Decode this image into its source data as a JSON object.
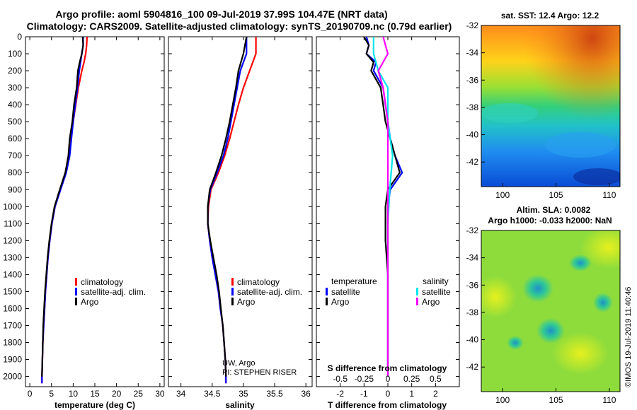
{
  "titles": {
    "line1": "Argo profile: aoml 5904816_100 09-Jul-2019 37.99S 104.47E (NRT data)",
    "line2": "Climatology: CARS2009. Satellite-adjusted climatology: synTS_20190709.nc (0.79d earlier)",
    "sst_title": "sat. SST: 12.4 Argo: 12.2",
    "sla_title1": "Altim. SLA: 0.0082",
    "sla_title2": "Argo h1000: -0.033 h2000: NaN",
    "credit": "UW, Argo",
    "pi": "PI: STEPHEN RISER",
    "watermark": "©IMOS 19-Jul-2019 11:40:46"
  },
  "colors": {
    "climatology": "#ff0000",
    "satellite": "#0000ff",
    "argo": "#000000",
    "salinity_satellite": "#00e5ee",
    "salinity_argo": "#ff00ff"
  },
  "chart_data": [
    {
      "type": "line",
      "panel": "temperature",
      "xlabel": "temperature (deg C)",
      "ylabel": "",
      "xlim": [
        -1,
        31
      ],
      "ylim": [
        2060,
        0
      ],
      "xticks": [
        0,
        5,
        10,
        15,
        20,
        25,
        30
      ],
      "yticks": [
        0,
        100,
        200,
        300,
        400,
        500,
        600,
        700,
        800,
        900,
        1000,
        1100,
        1200,
        1300,
        1400,
        1500,
        1600,
        1700,
        1800,
        1900,
        2000
      ],
      "legend": [
        "climatology",
        "satellite-adj. clim.",
        "Argo"
      ],
      "series": [
        {
          "name": "climatology",
          "color": "#ff0000",
          "points": [
            [
              13.2,
              0
            ],
            [
              13.1,
              50
            ],
            [
              12.9,
              100
            ],
            [
              12.5,
              150
            ],
            [
              12,
              200
            ],
            [
              11.2,
              300
            ],
            [
              10.6,
              400
            ],
            [
              10,
              500
            ],
            [
              9.5,
              600
            ],
            [
              9,
              700
            ],
            [
              8.2,
              800
            ],
            [
              7,
              900
            ],
            [
              5.8,
              1000
            ],
            [
              5.1,
              1100
            ],
            [
              4.6,
              1200
            ],
            [
              4.2,
              1300
            ],
            [
              3.9,
              1400
            ],
            [
              3.6,
              1500
            ],
            [
              3.4,
              1600
            ],
            [
              3.2,
              1700
            ],
            [
              3.0,
              1800
            ],
            [
              2.9,
              1900
            ],
            [
              2.8,
              2000
            ],
            [
              2.8,
              2040
            ]
          ]
        },
        {
          "name": "satellite-adj. clim.",
          "color": "#0000ff",
          "points": [
            [
              12.3,
              0
            ],
            [
              12.3,
              50
            ],
            [
              12,
              100
            ],
            [
              11.7,
              150
            ],
            [
              11.4,
              200
            ],
            [
              11,
              300
            ],
            [
              10.5,
              400
            ],
            [
              10,
              500
            ],
            [
              9.6,
              600
            ],
            [
              9.2,
              700
            ],
            [
              8.4,
              800
            ],
            [
              7.1,
              900
            ],
            [
              5.8,
              1000
            ],
            [
              5.1,
              1100
            ],
            [
              4.6,
              1200
            ],
            [
              4.2,
              1300
            ],
            [
              3.9,
              1400
            ],
            [
              3.6,
              1500
            ],
            [
              3.4,
              1600
            ],
            [
              3.2,
              1700
            ],
            [
              3.0,
              1800
            ],
            [
              2.9,
              1900
            ],
            [
              2.8,
              2000
            ],
            [
              2.8,
              2040
            ]
          ]
        },
        {
          "name": "Argo",
          "color": "#000000",
          "points": [
            [
              12.2,
              0
            ],
            [
              12.3,
              50
            ],
            [
              12.0,
              100
            ],
            [
              11.5,
              150
            ],
            [
              11.1,
              200
            ],
            [
              10.8,
              300
            ],
            [
              10.2,
              400
            ],
            [
              9.8,
              500
            ],
            [
              9.2,
              600
            ],
            [
              8.9,
              700
            ],
            [
              8.2,
              800
            ],
            [
              6.9,
              900
            ],
            [
              5.7,
              1000
            ],
            [
              5.0,
              1100
            ],
            [
              4.5,
              1200
            ],
            [
              4.1,
              1300
            ],
            [
              3.8,
              1400
            ],
            [
              3.5,
              1500
            ],
            [
              3.3,
              1600
            ],
            [
              3.1,
              1700
            ],
            [
              3.0,
              1800
            ],
            [
              2.9,
              1900
            ],
            [
              2.8,
              2000
            ]
          ]
        }
      ]
    },
    {
      "type": "line",
      "panel": "salinity",
      "xlabel": "salinity",
      "xlim": [
        33.8,
        36.1
      ],
      "ylim": [
        2060,
        0
      ],
      "xticks": [
        34,
        34.5,
        35,
        35.5,
        36
      ],
      "xticklabels": [
        "34",
        "34.5",
        "35",
        "35.5",
        "36"
      ],
      "legend": [
        "climatology",
        "satellite-adj. clim.",
        "Argo"
      ],
      "series": [
        {
          "name": "climatology",
          "color": "#ff0000",
          "points": [
            [
              35.2,
              0
            ],
            [
              35.2,
              100
            ],
            [
              35.1,
              200
            ],
            [
              35.0,
              300
            ],
            [
              34.92,
              400
            ],
            [
              34.85,
              500
            ],
            [
              34.78,
              600
            ],
            [
              34.7,
              700
            ],
            [
              34.6,
              800
            ],
            [
              34.48,
              900
            ],
            [
              34.44,
              1000
            ],
            [
              34.43,
              1100
            ],
            [
              34.46,
              1200
            ],
            [
              34.5,
              1300
            ],
            [
              34.55,
              1400
            ],
            [
              34.6,
              1500
            ],
            [
              34.63,
              1600
            ],
            [
              34.67,
              1700
            ],
            [
              34.69,
              1800
            ],
            [
              34.71,
              1900
            ],
            [
              34.72,
              2000
            ],
            [
              34.72,
              2040
            ]
          ]
        },
        {
          "name": "satellite-adj. clim.",
          "color": "#0000ff",
          "points": [
            [
              35.05,
              0
            ],
            [
              35.05,
              100
            ],
            [
              34.95,
              200
            ],
            [
              34.9,
              300
            ],
            [
              34.85,
              400
            ],
            [
              34.8,
              500
            ],
            [
              34.75,
              600
            ],
            [
              34.68,
              700
            ],
            [
              34.58,
              800
            ],
            [
              34.47,
              900
            ],
            [
              34.43,
              1000
            ],
            [
              34.43,
              1100
            ],
            [
              34.46,
              1200
            ],
            [
              34.5,
              1300
            ],
            [
              34.55,
              1400
            ],
            [
              34.6,
              1500
            ],
            [
              34.63,
              1600
            ],
            [
              34.67,
              1700
            ],
            [
              34.69,
              1800
            ],
            [
              34.71,
              1900
            ],
            [
              34.72,
              2000
            ],
            [
              34.72,
              2040
            ]
          ]
        },
        {
          "name": "Argo",
          "color": "#000000",
          "points": [
            [
              35.05,
              0
            ],
            [
              35.0,
              100
            ],
            [
              34.92,
              200
            ],
            [
              34.88,
              300
            ],
            [
              34.83,
              400
            ],
            [
              34.78,
              500
            ],
            [
              34.72,
              600
            ],
            [
              34.65,
              700
            ],
            [
              34.56,
              800
            ],
            [
              34.46,
              900
            ],
            [
              34.43,
              1000
            ],
            [
              34.43,
              1100
            ],
            [
              34.47,
              1200
            ],
            [
              34.52,
              1300
            ],
            [
              34.57,
              1400
            ],
            [
              34.61,
              1500
            ],
            [
              34.64,
              1600
            ],
            [
              34.67,
              1700
            ],
            [
              34.69,
              1800
            ],
            [
              34.71,
              1900
            ],
            [
              34.72,
              2000
            ]
          ]
        }
      ]
    },
    {
      "type": "line",
      "panel": "difference",
      "xlabel": "T difference from climatology",
      "xlabel_top": "S difference from climatology",
      "xlim": [
        -3,
        3
      ],
      "ylim": [
        2060,
        0
      ],
      "xticks": [
        -2,
        -1,
        0,
        1,
        2
      ],
      "s_ticklabels": [
        "-0.5",
        "-0.25",
        "0",
        "0.25",
        "0.5"
      ],
      "legend_left_title": "temperature",
      "legend_right_title": "salinity",
      "legend": [
        "satellite",
        "Argo",
        "satellite",
        "Argo"
      ],
      "series": [
        {
          "name": "temperature satellite",
          "color": "#0000ff",
          "points": [
            [
              -0.9,
              0
            ],
            [
              -0.8,
              50
            ],
            [
              -0.9,
              100
            ],
            [
              -0.5,
              150
            ],
            [
              -0.6,
              200
            ],
            [
              -0.2,
              300
            ],
            [
              -0.1,
              400
            ],
            [
              0.0,
              500
            ],
            [
              0.1,
              600
            ],
            [
              0.3,
              700
            ],
            [
              0.6,
              800
            ],
            [
              0.1,
              900
            ],
            [
              0.0,
              1000
            ],
            [
              0.0,
              1200
            ],
            [
              0.0,
              1400
            ],
            [
              0.0,
              1600
            ],
            [
              0.0,
              1800
            ],
            [
              0.0,
              2000
            ]
          ]
        },
        {
          "name": "temperature Argo",
          "color": "#000000",
          "points": [
            [
              -1.0,
              0
            ],
            [
              -0.8,
              50
            ],
            [
              -0.9,
              100
            ],
            [
              -0.6,
              150
            ],
            [
              -0.7,
              200
            ],
            [
              -0.3,
              300
            ],
            [
              -0.2,
              400
            ],
            [
              -0.1,
              500
            ],
            [
              0.1,
              600
            ],
            [
              0.3,
              700
            ],
            [
              0.5,
              800
            ],
            [
              0.0,
              900
            ],
            [
              -0.1,
              1000
            ],
            [
              -0.1,
              1200
            ],
            [
              0.0,
              1400
            ],
            [
              0.0,
              1600
            ],
            [
              0.0,
              1800
            ],
            [
              0.0,
              2000
            ]
          ]
        },
        {
          "name": "salinity satellite",
          "color": "#00e5ee",
          "points": [
            [
              -0.15,
              0
            ],
            [
              -0.15,
              100
            ],
            [
              -0.1,
              200
            ],
            [
              0.0,
              300
            ],
            [
              0.0,
              500
            ],
            [
              0.05,
              700
            ],
            [
              0.02,
              900
            ],
            [
              0.0,
              1100
            ],
            [
              0.0,
              1400
            ],
            [
              0.0,
              1700
            ],
            [
              0.0,
              2000
            ]
          ]
        },
        {
          "name": "salinity Argo",
          "color": "#ff00ff",
          "points": [
            [
              -0.05,
              0
            ],
            [
              0.0,
              100
            ],
            [
              -0.1,
              200
            ],
            [
              -0.05,
              300
            ],
            [
              0.0,
              500
            ],
            [
              0.0,
              800
            ],
            [
              0.0,
              1100
            ],
            [
              0.0,
              1400
            ],
            [
              0.0,
              1700
            ],
            [
              0.0,
              2000
            ]
          ]
        }
      ]
    },
    {
      "type": "heatmap",
      "panel": "sst_map",
      "title": "sat. SST: 12.4 Argo: 12.2",
      "xlim": [
        98,
        111
      ],
      "ylim": [
        -43.8,
        -32
      ],
      "xticks": [
        100,
        105,
        110
      ],
      "yticks": [
        -32,
        -34,
        -36,
        -38,
        -40,
        -42
      ]
    },
    {
      "type": "heatmap",
      "panel": "sla_map",
      "title": "Altim. SLA: 0.0082",
      "xlim": [
        98,
        111
      ],
      "ylim": [
        -43.8,
        -32
      ],
      "xticks": [
        100,
        105,
        110
      ],
      "yticks": [
        -32,
        -34,
        -36,
        -38,
        -40,
        -42
      ]
    }
  ]
}
